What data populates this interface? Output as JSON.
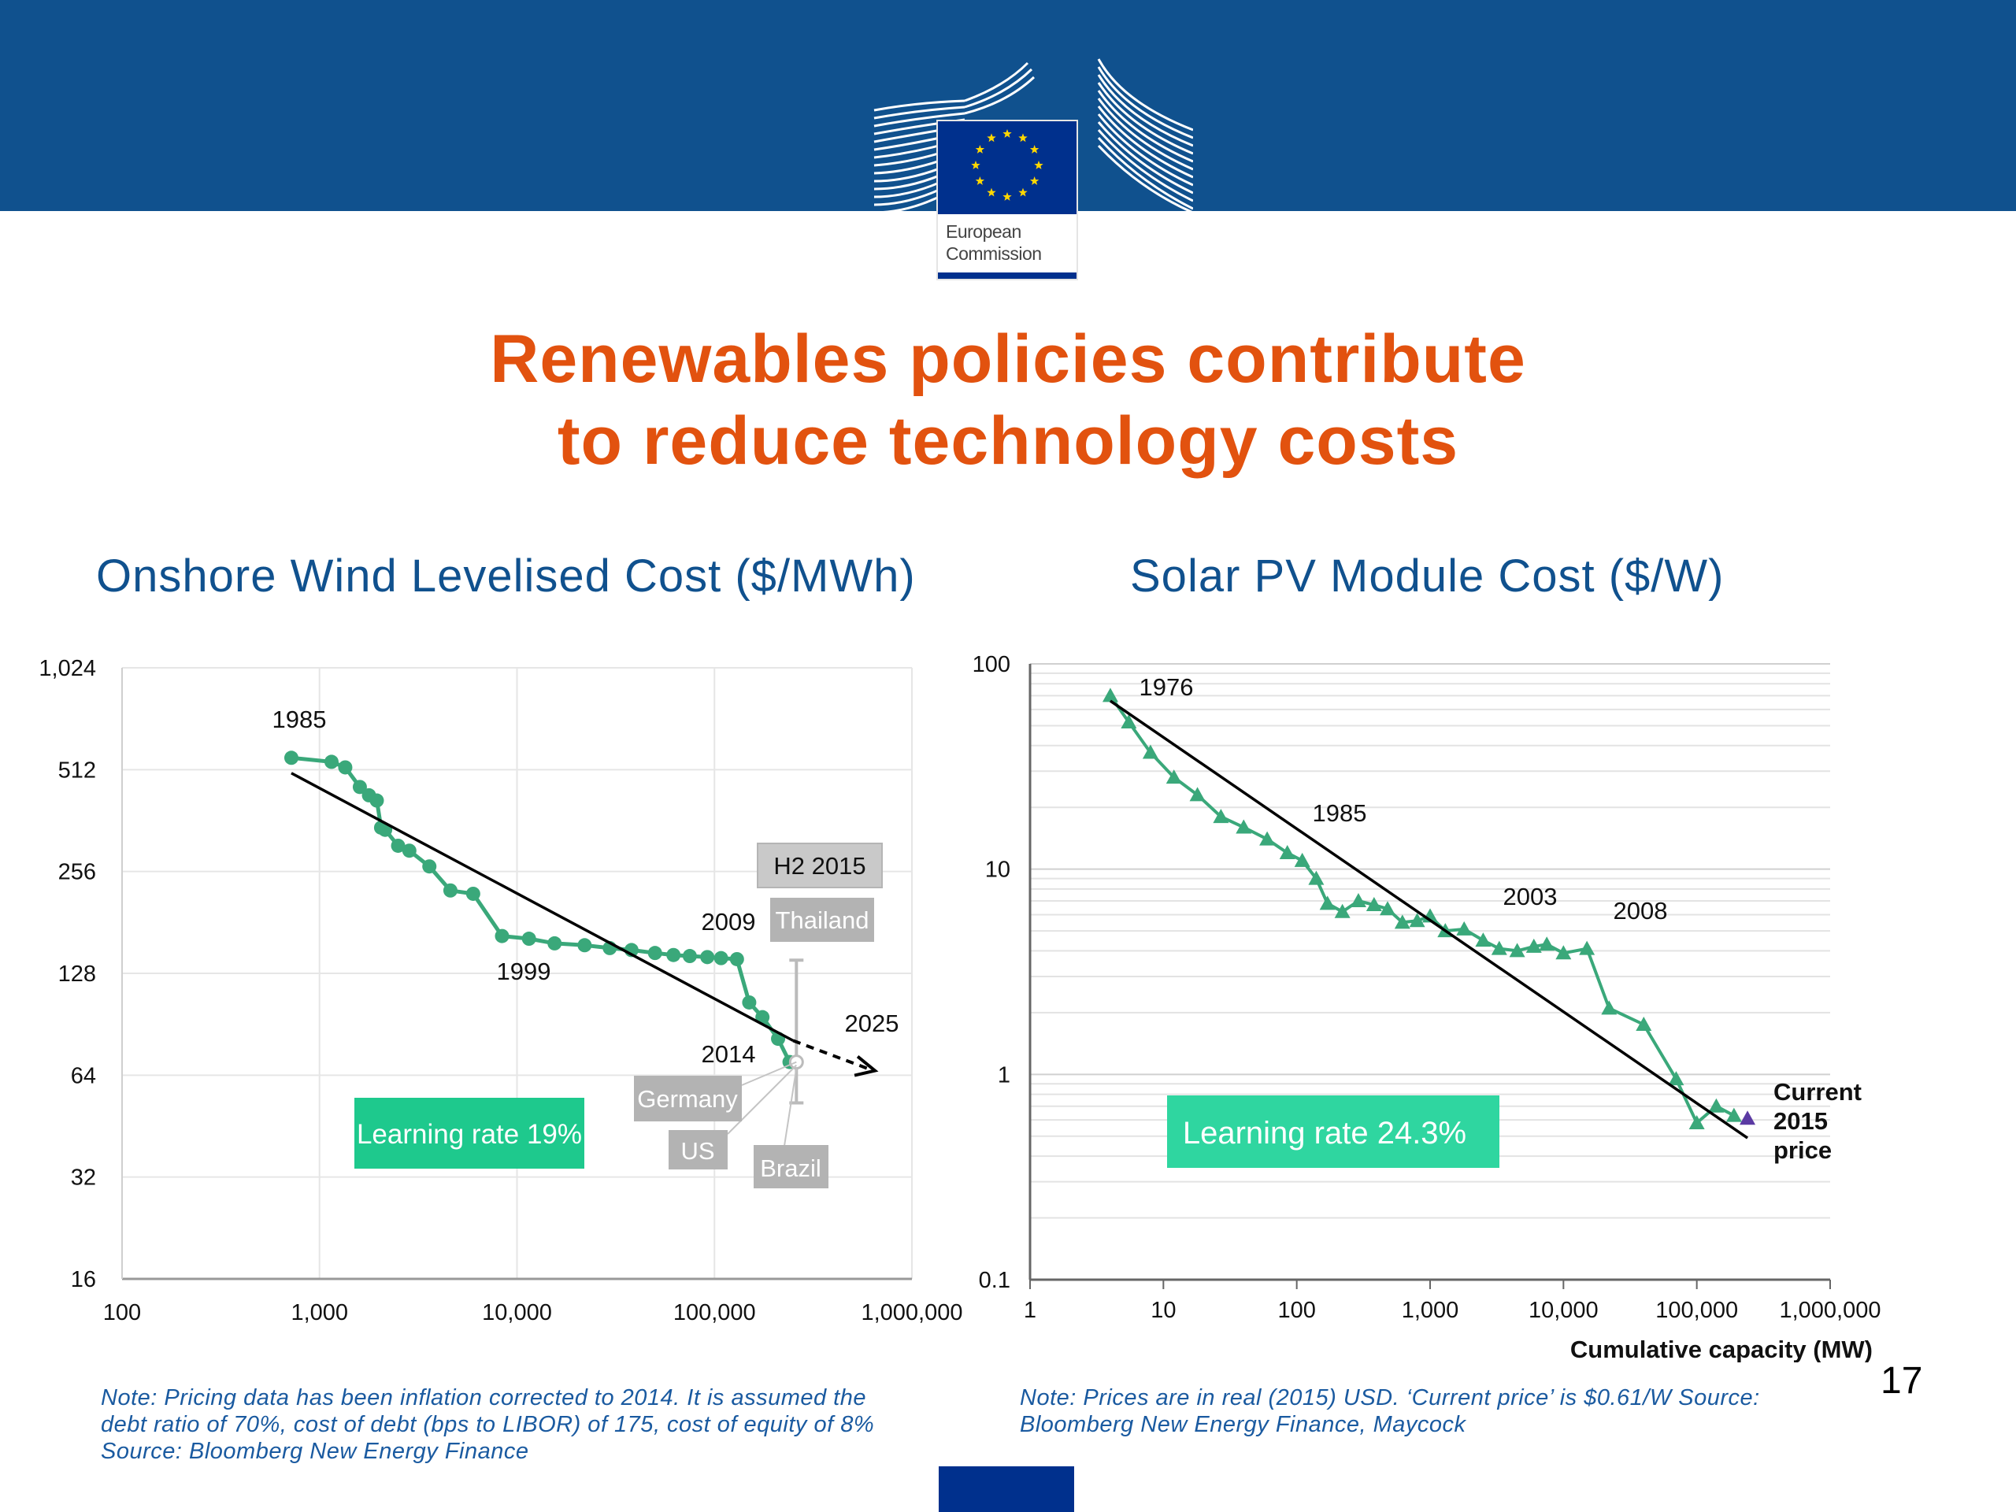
{
  "header": {
    "logo_line1": "European",
    "logo_line2": "Commission",
    "brand_color": "#10518e"
  },
  "title": {
    "line1": "Renewables policies contribute",
    "line2": "to reduce technology costs",
    "color": "#e2520f"
  },
  "page_number": "17",
  "chart_data": [
    {
      "type": "line",
      "title": "Onshore Wind Levelised Cost ($/MWh)",
      "x_scale": "log",
      "y_scale": "log2",
      "xlim": [
        100,
        1000000
      ],
      "ylim": [
        16,
        1024
      ],
      "x_ticks": [
        100,
        1000,
        10000,
        100000,
        1000000
      ],
      "x_tick_labels": [
        "100",
        "1,000",
        "10,000",
        "100,000",
        "1,000,000"
      ],
      "y_ticks": [
        16,
        32,
        64,
        128,
        256,
        512,
        1024
      ],
      "y_tick_labels": [
        "16",
        "32",
        "64",
        "128",
        "256",
        "512",
        "1,024"
      ],
      "grid": true,
      "series": [
        {
          "color": "#3aa87a",
          "x": [
            720,
            1150,
            1350,
            1600,
            1780,
            1950,
            2050,
            2150,
            2500,
            2850,
            3600,
            4600,
            6000,
            8400,
            11500,
            15500,
            22000,
            29500,
            38000,
            50000,
            62000,
            75000,
            92000,
            108000,
            130000,
            150000,
            175000,
            210000,
            240000
          ],
          "y": [
            555,
            540,
            520,
            455,
            430,
            415,
            345,
            340,
            305,
            295,
            265,
            225,
            220,
            165,
            162,
            157,
            155,
            152,
            150,
            147,
            145,
            144,
            143,
            142,
            141,
            105,
            95,
            82,
            70
          ]
        }
      ],
      "trend_line": {
        "x": [
          720,
          250000
        ],
        "y": [
          500,
          81
        ]
      },
      "projection": {
        "x": [
          250000,
          650000
        ],
        "y": [
          81,
          66
        ]
      },
      "range_bar": {
        "x": 260000,
        "y_low": 53,
        "y_high": 140,
        "center_y": 70
      },
      "labels": {
        "year_1985": "1985",
        "year_1999": "1999",
        "year_2009": "2009",
        "year_2014": "2014",
        "year_2025": "2025",
        "h2_2015": "H2 2015",
        "thailand": "Thailand",
        "germany": "Germany",
        "us": "US",
        "brazil": "Brazil",
        "learning_rate": "Learning rate 19%"
      },
      "colors": {
        "learning_box": "#1ec98d",
        "country_box": "#b3b3b3",
        "h2_box": "#c9c9c9"
      },
      "note": "Note: Pricing data has been inflation corrected to 2014. It is assumed the debt ratio of 70%, cost of debt (bps to LIBOR) of 175, cost of equity of 8%  Source: Bloomberg New Energy Finance"
    },
    {
      "type": "line",
      "title": "Solar PV Module Cost ($/W)",
      "xlabel": "Cumulative capacity (MW)",
      "x_scale": "log",
      "y_scale": "log",
      "xlim": [
        1,
        1000000
      ],
      "ylim": [
        0.1,
        100
      ],
      "x_ticks": [
        1,
        10,
        100,
        1000,
        10000,
        100000,
        1000000
      ],
      "x_tick_labels": [
        "1",
        "10",
        "100",
        "1,000",
        "10,000",
        "100,000",
        "1,000,000"
      ],
      "y_ticks": [
        0.1,
        1,
        10,
        100
      ],
      "y_tick_labels": [
        "0.1",
        "1",
        "10",
        "100"
      ],
      "grid": true,
      "series": [
        {
          "color": "#3aa87a",
          "x": [
            4,
            5.5,
            8,
            12,
            18,
            27,
            40,
            60,
            85,
            110,
            140,
            170,
            220,
            290,
            380,
            480,
            620,
            800,
            1000,
            1300,
            1800,
            2500,
            3300,
            4500,
            6000,
            7500,
            10000,
            15000,
            22000,
            40000,
            70000,
            100000,
            140000,
            190000
          ],
          "x_note": "",
          "y": [
            70,
            52,
            37,
            28,
            23,
            18,
            16,
            14,
            12,
            11,
            9,
            6.8,
            6.2,
            7.0,
            6.7,
            6.4,
            5.5,
            5.6,
            5.9,
            5.0,
            5.1,
            4.5,
            4.1,
            4.0,
            4.2,
            4.3,
            3.9,
            4.1,
            2.1,
            1.75,
            0.95,
            0.58,
            0.7,
            0.63
          ]
        }
      ],
      "current_price_point": {
        "x": 240000,
        "y": 0.61,
        "color": "#5b3aa3"
      },
      "trend_line": {
        "x": [
          4,
          240000
        ],
        "y": [
          66,
          0.49
        ]
      },
      "labels": {
        "year_1976": "1976",
        "year_1985": "1985",
        "year_2003": "2003",
        "year_2008": "2008",
        "current_1": "Current",
        "current_2": "2015",
        "current_3": "price",
        "learning_rate": "Learning rate 24.3%"
      },
      "colors": {
        "learning_box": "#2fd6a0"
      },
      "note": "Note: Prices are in real (2015) USD. ‘Current price’ is $0.61/W  Source: Bloomberg New Energy Finance, Maycock"
    }
  ]
}
